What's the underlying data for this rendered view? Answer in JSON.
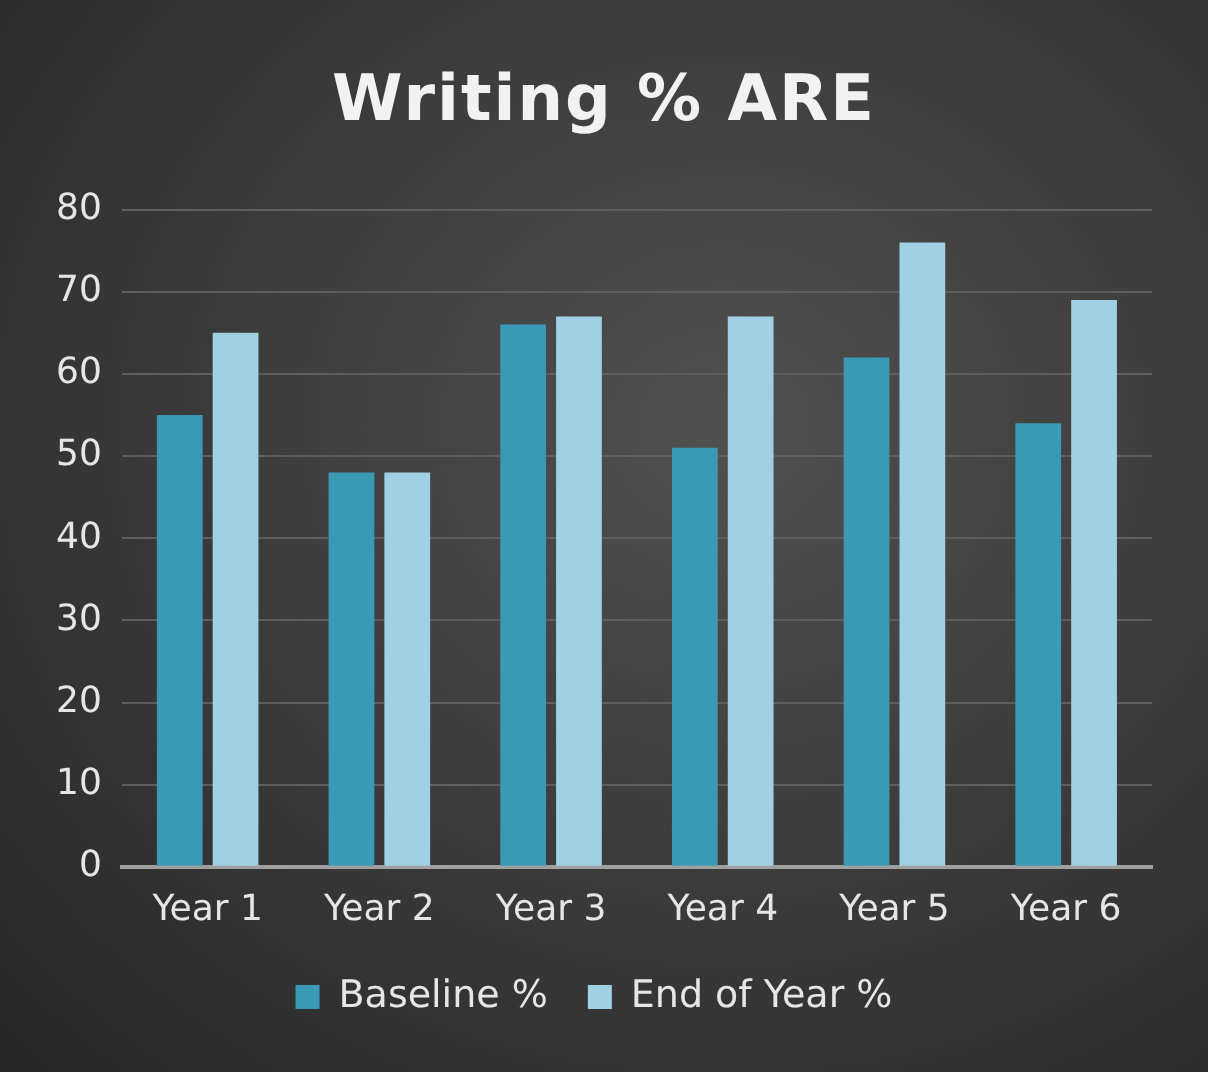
{
  "chart_data": {
    "type": "bar",
    "title": "Writing % ARE",
    "categories": [
      "Year 1",
      "Year 2",
      "Year 3",
      "Year 4",
      "Year 5",
      "Year 6"
    ],
    "series": [
      {
        "name": "Baseline %",
        "color": "#3a9ab5",
        "values": [
          55,
          48,
          66,
          51,
          62,
          54
        ]
      },
      {
        "name": "End of Year %",
        "color": "#9fd0e3",
        "values": [
          65,
          48,
          67,
          67,
          76,
          69
        ]
      }
    ],
    "ylim": [
      0,
      80
    ],
    "yticks": [
      0,
      10,
      20,
      30,
      40,
      50,
      60,
      70,
      80
    ],
    "grid": "y",
    "legend": "bottom"
  }
}
